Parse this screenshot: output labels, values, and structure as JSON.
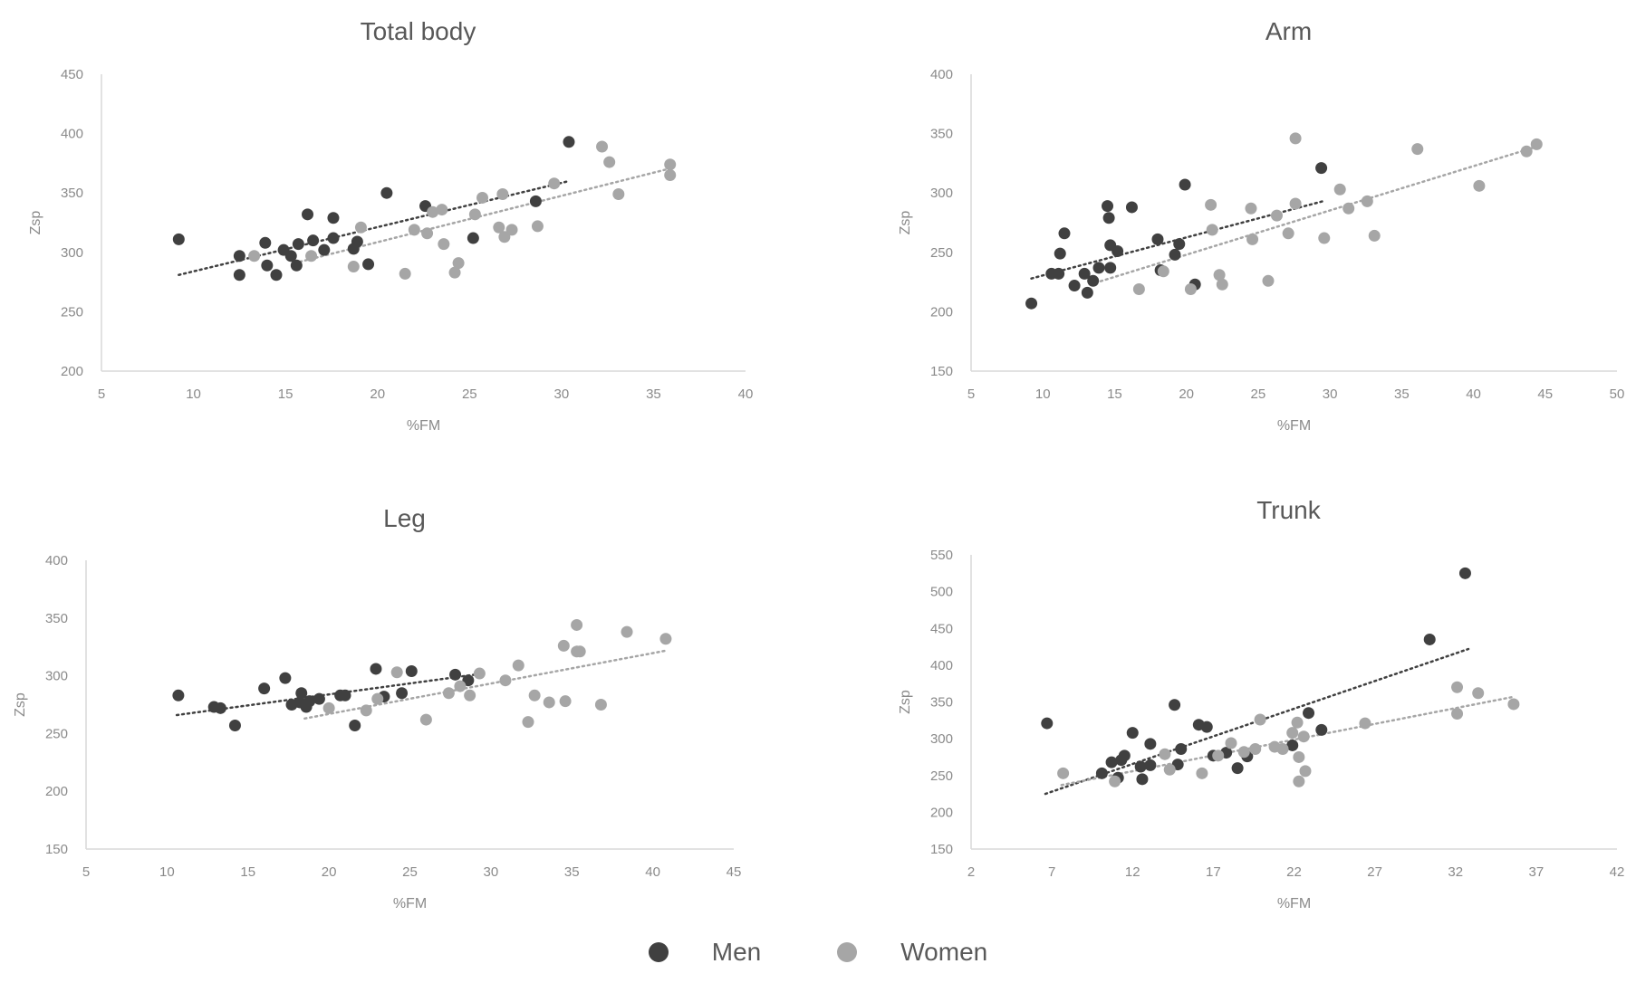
{
  "legend": {
    "men": {
      "label": "Men",
      "color": "#404040"
    },
    "women": {
      "label": "Women",
      "color": "#a6a6a6"
    }
  },
  "chart_data": [
    {
      "type": "scatter",
      "title": "Total body",
      "xlabel": "%FM",
      "ylabel": "Zsp",
      "xlim": [
        5,
        40
      ],
      "ylim": [
        200,
        450
      ],
      "xticks": [
        5,
        10,
        15,
        20,
        25,
        30,
        35,
        40
      ],
      "yticks": [
        200,
        250,
        300,
        350,
        400,
        450
      ],
      "grid": false,
      "series": [
        {
          "name": "Men",
          "color": "#404040",
          "trend": [
            [
              9.2,
              281
            ],
            [
              30.4,
              360
            ]
          ],
          "points": [
            [
              9.2,
              311
            ],
            [
              12.5,
              297
            ],
            [
              12.5,
              281
            ],
            [
              13.9,
              308
            ],
            [
              14.0,
              289
            ],
            [
              14.5,
              281
            ],
            [
              14.9,
              302
            ],
            [
              15.3,
              297
            ],
            [
              15.6,
              289
            ],
            [
              15.7,
              307
            ],
            [
              16.2,
              332
            ],
            [
              16.5,
              310
            ],
            [
              17.1,
              302
            ],
            [
              17.6,
              312
            ],
            [
              17.6,
              329
            ],
            [
              18.7,
              303
            ],
            [
              18.9,
              309
            ],
            [
              19.5,
              290
            ],
            [
              20.5,
              350
            ],
            [
              22.6,
              339
            ],
            [
              25.2,
              312
            ],
            [
              28.6,
              343
            ],
            [
              30.4,
              393
            ]
          ]
        },
        {
          "name": "Women",
          "color": "#a6a6a6",
          "trend": [
            [
              15.5,
              291
            ],
            [
              36.0,
              371
            ]
          ],
          "points": [
            [
              13.3,
              297
            ],
            [
              16.4,
              297
            ],
            [
              18.7,
              288
            ],
            [
              19.1,
              321
            ],
            [
              21.5,
              282
            ],
            [
              22.0,
              319
            ],
            [
              22.7,
              316
            ],
            [
              23.0,
              334
            ],
            [
              23.5,
              336
            ],
            [
              23.6,
              307
            ],
            [
              24.2,
              283
            ],
            [
              24.4,
              291
            ],
            [
              25.3,
              332
            ],
            [
              25.7,
              346
            ],
            [
              26.6,
              321
            ],
            [
              26.8,
              349
            ],
            [
              26.9,
              313
            ],
            [
              27.3,
              319
            ],
            [
              28.7,
              322
            ],
            [
              29.6,
              358
            ],
            [
              32.2,
              389
            ],
            [
              32.6,
              376
            ],
            [
              33.1,
              349
            ],
            [
              35.9,
              374
            ],
            [
              35.9,
              365
            ]
          ]
        }
      ]
    },
    {
      "type": "scatter",
      "title": "Arm",
      "xlabel": "%FM",
      "ylabel": "Zsp",
      "xlim": [
        5,
        50
      ],
      "ylim": [
        150,
        400
      ],
      "xticks": [
        5,
        10,
        15,
        20,
        25,
        30,
        35,
        40,
        45,
        50
      ],
      "yticks": [
        150,
        200,
        250,
        300,
        350,
        400
      ],
      "grid": false,
      "series": [
        {
          "name": "Men",
          "color": "#404040",
          "trend": [
            [
              9.2,
              228
            ],
            [
              29.5,
              293
            ]
          ],
          "points": [
            [
              9.2,
              207
            ],
            [
              10.6,
              232
            ],
            [
              11.1,
              232
            ],
            [
              11.2,
              249
            ],
            [
              11.5,
              266
            ],
            [
              12.2,
              222
            ],
            [
              12.9,
              232
            ],
            [
              13.1,
              216
            ],
            [
              13.5,
              226
            ],
            [
              13.9,
              237
            ],
            [
              14.5,
              289
            ],
            [
              14.6,
              279
            ],
            [
              14.7,
              256
            ],
            [
              14.7,
              237
            ],
            [
              15.2,
              251
            ],
            [
              16.2,
              288
            ],
            [
              18.0,
              261
            ],
            [
              18.2,
              235
            ],
            [
              19.2,
              248
            ],
            [
              19.5,
              257
            ],
            [
              19.9,
              307
            ],
            [
              20.6,
              223
            ],
            [
              29.4,
              321
            ]
          ]
        },
        {
          "name": "Women",
          "color": "#a6a6a6",
          "trend": [
            [
              13.3,
              223
            ],
            [
              44.4,
              339
            ]
          ],
          "points": [
            [
              16.7,
              219
            ],
            [
              18.4,
              234
            ],
            [
              20.3,
              219
            ],
            [
              21.7,
              290
            ],
            [
              21.8,
              269
            ],
            [
              22.3,
              231
            ],
            [
              22.5,
              223
            ],
            [
              24.5,
              287
            ],
            [
              24.6,
              261
            ],
            [
              25.7,
              226
            ],
            [
              26.3,
              281
            ],
            [
              27.1,
              266
            ],
            [
              27.6,
              291
            ],
            [
              27.6,
              346
            ],
            [
              29.6,
              262
            ],
            [
              30.7,
              303
            ],
            [
              31.3,
              287
            ],
            [
              32.6,
              293
            ],
            [
              33.1,
              264
            ],
            [
              36.1,
              337
            ],
            [
              40.4,
              306
            ],
            [
              43.7,
              335
            ],
            [
              44.4,
              341
            ]
          ]
        }
      ]
    },
    {
      "type": "scatter",
      "title": "Leg",
      "xlabel": "%FM",
      "ylabel": "Zsp",
      "xlim": [
        5,
        45
      ],
      "ylim": [
        150,
        400
      ],
      "xticks": [
        5,
        10,
        15,
        20,
        25,
        30,
        35,
        40,
        45
      ],
      "yticks": [
        150,
        200,
        250,
        300,
        350,
        400
      ],
      "grid": false,
      "series": [
        {
          "name": "Men",
          "color": "#404040",
          "trend": [
            [
              10.6,
              266
            ],
            [
              29.0,
              301
            ]
          ],
          "points": [
            [
              10.7,
              283
            ],
            [
              12.9,
              273
            ],
            [
              13.3,
              272
            ],
            [
              14.2,
              257
            ],
            [
              16.0,
              289
            ],
            [
              17.3,
              298
            ],
            [
              17.7,
              275
            ],
            [
              18.2,
              277
            ],
            [
              18.3,
              285
            ],
            [
              18.6,
              273
            ],
            [
              18.8,
              278
            ],
            [
              19.4,
              280
            ],
            [
              20.7,
              283
            ],
            [
              21.0,
              283
            ],
            [
              21.6,
              257
            ],
            [
              22.9,
              306
            ],
            [
              23.4,
              282
            ],
            [
              24.5,
              285
            ],
            [
              25.1,
              304
            ],
            [
              27.8,
              301
            ],
            [
              28.6,
              296
            ]
          ]
        },
        {
          "name": "Women",
          "color": "#a6a6a6",
          "trend": [
            [
              18.5,
              263
            ],
            [
              40.9,
              322
            ]
          ],
          "points": [
            [
              20.0,
              272
            ],
            [
              22.3,
              270
            ],
            [
              23.0,
              280
            ],
            [
              24.2,
              303
            ],
            [
              26.0,
              262
            ],
            [
              27.4,
              285
            ],
            [
              28.1,
              291
            ],
            [
              28.7,
              283
            ],
            [
              29.3,
              302
            ],
            [
              30.9,
              296
            ],
            [
              31.7,
              309
            ],
            [
              32.3,
              260
            ],
            [
              32.7,
              283
            ],
            [
              33.6,
              277
            ],
            [
              34.5,
              326
            ],
            [
              34.6,
              278
            ],
            [
              35.3,
              344
            ],
            [
              35.3,
              321
            ],
            [
              35.5,
              321
            ],
            [
              36.8,
              275
            ],
            [
              38.4,
              338
            ],
            [
              40.8,
              332
            ]
          ]
        }
      ]
    },
    {
      "type": "scatter",
      "title": "Trunk",
      "xlabel": "%FM",
      "ylabel": "Zsp",
      "xlim": [
        2,
        42
      ],
      "ylim": [
        150,
        550
      ],
      "xticks": [
        2,
        7,
        12,
        17,
        22,
        27,
        32,
        37,
        42
      ],
      "yticks": [
        150,
        200,
        250,
        300,
        350,
        400,
        450,
        500,
        550
      ],
      "grid": false,
      "series": [
        {
          "name": "Men",
          "color": "#404040",
          "trend": [
            [
              6.6,
              225
            ],
            [
              32.8,
              422
            ]
          ],
          "points": [
            [
              6.7,
              321
            ],
            [
              10.1,
              253
            ],
            [
              10.7,
              268
            ],
            [
              11.1,
              247
            ],
            [
              11.3,
              271
            ],
            [
              11.5,
              277
            ],
            [
              12.0,
              308
            ],
            [
              12.5,
              262
            ],
            [
              12.6,
              245
            ],
            [
              13.1,
              264
            ],
            [
              13.1,
              293
            ],
            [
              14.6,
              346
            ],
            [
              14.8,
              265
            ],
            [
              15.0,
              286
            ],
            [
              16.1,
              319
            ],
            [
              16.6,
              316
            ],
            [
              17.0,
              277
            ],
            [
              17.8,
              281
            ],
            [
              18.5,
              260
            ],
            [
              19.1,
              276
            ],
            [
              21.9,
              291
            ],
            [
              22.9,
              335
            ],
            [
              23.7,
              312
            ],
            [
              30.4,
              435
            ],
            [
              32.6,
              525
            ]
          ]
        },
        {
          "name": "Women",
          "color": "#a6a6a6",
          "trend": [
            [
              7.6,
              237
            ],
            [
              35.6,
              357
            ]
          ],
          "points": [
            [
              7.7,
              253
            ],
            [
              10.9,
              242
            ],
            [
              14.0,
              279
            ],
            [
              14.3,
              258
            ],
            [
              16.3,
              253
            ],
            [
              17.3,
              277
            ],
            [
              18.1,
              294
            ],
            [
              18.9,
              282
            ],
            [
              19.6,
              286
            ],
            [
              19.9,
              326
            ],
            [
              20.8,
              289
            ],
            [
              21.3,
              286
            ],
            [
              21.9,
              308
            ],
            [
              22.2,
              322
            ],
            [
              22.3,
              275
            ],
            [
              22.3,
              242
            ],
            [
              22.6,
              303
            ],
            [
              22.7,
              256
            ],
            [
              26.4,
              321
            ],
            [
              32.1,
              370
            ],
            [
              32.1,
              334
            ],
            [
              33.4,
              362
            ],
            [
              35.6,
              347
            ]
          ]
        }
      ]
    }
  ]
}
